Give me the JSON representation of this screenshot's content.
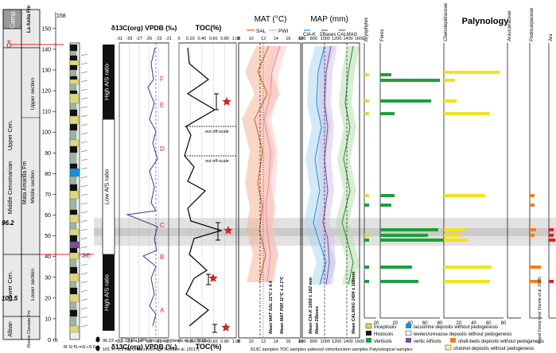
{
  "stratigraphy": {
    "header": "Camp.",
    "formation_top": "La Anita Fm",
    "delta_symbol": "δ",
    "age_marker_top": "96.2",
    "age_marker_bottom": "100.5",
    "stages": [
      "Upper Cen.",
      "Middle Cenomanian",
      "Lower Cen.",
      "Albian"
    ],
    "formations": [
      "Mata Amarilla Fm",
      "Piedra Clavada Fm"
    ],
    "sections": [
      "Upper section",
      "Middle section",
      "Lower section"
    ],
    "sb_label": "SB",
    "grain_axis": "M Si fS mS cS G",
    "meter_unit": "0 m",
    "meter_ticks": [
      "150",
      "140",
      "130",
      "120",
      "110",
      "100",
      "90",
      "80",
      "70",
      "60",
      "50",
      "40",
      "30",
      "20",
      "10"
    ]
  },
  "as_ratio_labels": [
    "High A/S ratio",
    "Low A/S ratio",
    "High A/S ratio"
  ],
  "delta13c": {
    "title": "δ13C(org) VPDB (‰)",
    "bottom_title": "δ13C(org) VPDB (‰)",
    "ticks": [
      "-31",
      "-29",
      "-27",
      "-25",
      "-23",
      "-21"
    ],
    "points": [
      "F",
      "E",
      "D",
      "C",
      "B",
      "A"
    ]
  },
  "toc": {
    "title": "TOC(%)",
    "bottom_title": "TOC(%)",
    "ticks": [
      "0",
      "0.20",
      "0.40",
      "0.60",
      "0.80",
      "1.00"
    ],
    "offscale_1": "out off-scale",
    "offscale_2": "out off-scale"
  },
  "mat": {
    "title": "MAT (°C)",
    "legend": [
      "SAL",
      "PWI"
    ],
    "ticks": [
      "8",
      "10",
      "12",
      "14",
      "16",
      "18"
    ],
    "mean_sal": "Mean MAT SAL 11°C ± 4.4",
    "mean_pwi": "Mean MAT PWI 11°C ± 2.1°C"
  },
  "map": {
    "title": "MAP (mm)",
    "legend": [
      "CIA-K",
      "ΣBases",
      "CALMAG"
    ],
    "ticks": [
      "600",
      "800",
      "1000",
      "1200",
      "1400",
      "1600"
    ],
    "mean_cia": "Mean CIA-K 1059 ± 182 mm",
    "mean_bases": "Mean ΣBases",
    "mean_calmag": "Mean CALMAG 1404 ± 108mm"
  },
  "palynology": {
    "title": "Palynology",
    "groups": [
      "Bryophytes",
      "Ferns",
      "Cheirolepidiaceae",
      "Araucariaceae",
      "Podocarpaceae",
      "Ara"
    ],
    "ticks_bryo": [
      "20"
    ],
    "ticks_ferns": [
      "20",
      "40",
      "60",
      "80"
    ],
    "ticks_cheiro": [
      "20",
      "40",
      "60",
      "80"
    ],
    "fossil_forest": "Fossil Forest level (Varela et al. 2016)"
  },
  "legend": {
    "incep": "Inceptisols",
    "hist": "Histosols",
    "vert": "Vertisols",
    "lac": "lacustrine deposits without pedogenesis",
    "lev": "levees/crevasse deposits without pedogenesis",
    "vertic": "vertic Alfisols",
    "shell": "shell-beds deposits without pedogenesis",
    "channel": "channel deposits without pedogenesis",
    "age1": "96.23 +/- 0.23 Ma U/Pb zircon age Varela et al. (2012a)",
    "age2": "101 +/- 0.9 Ma U/Pb zircon age Poiré et al. (2017)",
    "sample_line": "δ13C samples   TOC samples   paleosol climofunction samples   Palynological samples"
  },
  "colors": {
    "incep": "#dcd84a",
    "hist": "#1a1a1a",
    "vert": "#1e9e3e",
    "lac": "#1a8fd6",
    "lev": "#eeeeee",
    "vertic": "#7a4fa0",
    "shell": "#f07e1e",
    "channel": "#f7f2a0",
    "delta_line": "#4a2f8a",
    "toc_star": "#d42222",
    "sal": "#e05a1a",
    "pwi": "#f0a0a0",
    "cia": "#1a8fd6",
    "bases": "#7a4fa0",
    "calmag": "#2a8a3a",
    "ferns_bar": "#1e9e3e",
    "cheiro_bar": "#f0e21e",
    "podo_bar": "#f07e1e",
    "red": "#e02020"
  }
}
